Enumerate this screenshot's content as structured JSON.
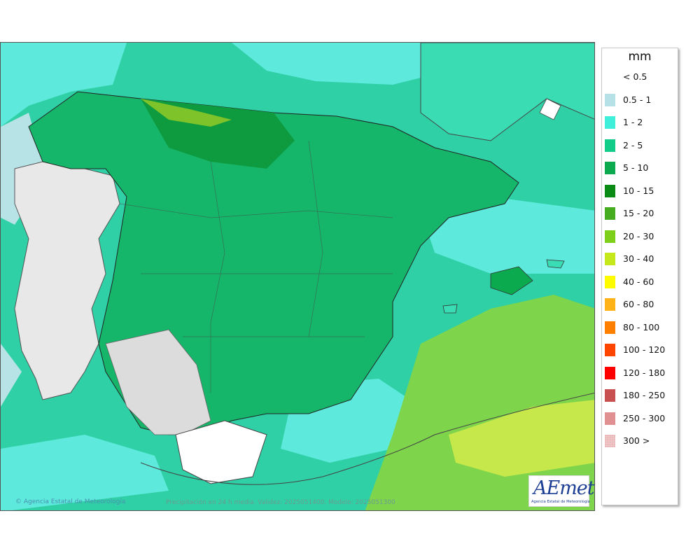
{
  "map": {
    "credit": "Agencia Estatal de Meteorología",
    "caption": "Precipitación en 24 h media. Validez: 2025051400. Modelo: 2025051300",
    "logo_text": "AEmet",
    "logo_subtitle": "Agencia Estatal de Meteorología"
  },
  "legend": {
    "unit": "mm",
    "items": [
      {
        "label": "< 0.5",
        "color": "#ffffff"
      },
      {
        "label": "0.5 - 1",
        "color": "#b6e1e6"
      },
      {
        "label": "1 - 2",
        "color": "#40efd9"
      },
      {
        "label": "2 - 5",
        "color": "#12cc8a"
      },
      {
        "label": "5 - 10",
        "color": "#0caa4e"
      },
      {
        "label": "10 - 15",
        "color": "#0a8c16"
      },
      {
        "label": "15 - 20",
        "color": "#45ad1f"
      },
      {
        "label": "20 - 30",
        "color": "#7ecf1a"
      },
      {
        "label": "30 - 40",
        "color": "#c4e81a"
      },
      {
        "label": "40 - 60",
        "color": "#fffc00"
      },
      {
        "label": "60 - 80",
        "color": "#ffb319"
      },
      {
        "label": "80 - 100",
        "color": "#ff7f00"
      },
      {
        "label": "100 - 120",
        "color": "#ff4500"
      },
      {
        "label": "120 - 180",
        "color": "#ff0000"
      },
      {
        "label": "180 - 250",
        "color": "#c85050"
      },
      {
        "label": "250 - 300",
        "color": "#e09090"
      },
      {
        "label": "300 >",
        "color": "#f2d6d6",
        "pattern": "dotted"
      }
    ]
  }
}
